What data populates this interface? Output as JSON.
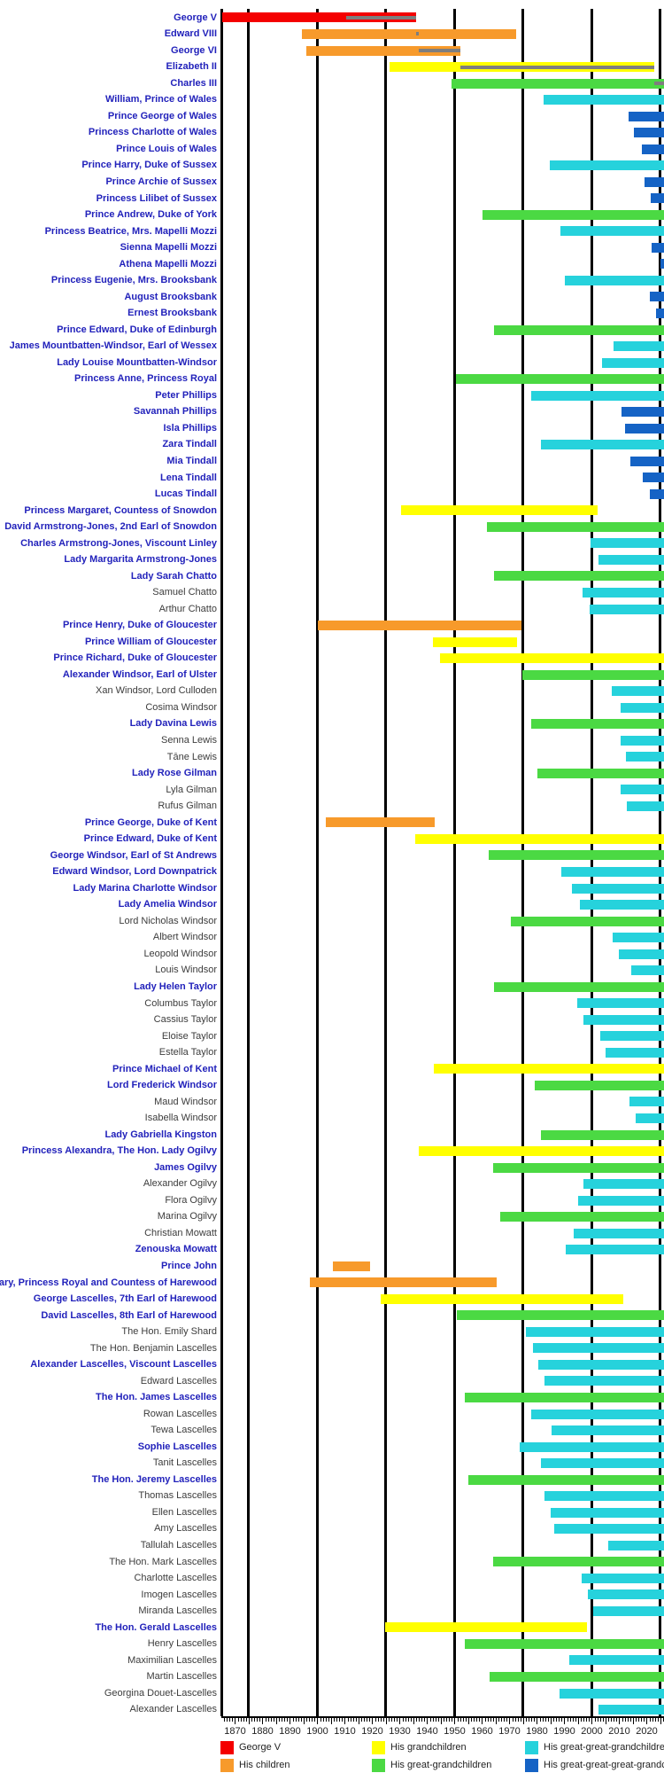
{
  "colors": {
    "generation_palette": [
      "#f40000",
      "#f79a2b",
      "#ffff00",
      "#4bd943",
      "#26d2dc",
      "#1563c5"
    ],
    "reign_stripe": "#7e7e7e",
    "link_label": "#2222bb",
    "plain_label": "#3c3c3c",
    "axis": "#000000"
  },
  "legend": [
    {
      "label": "George V",
      "color": "#f40000"
    },
    {
      "label": "His children",
      "color": "#f79a2b"
    },
    {
      "label": "His grandchildren",
      "color": "#ffff00"
    },
    {
      "label": "His great-grandchildren",
      "color": "#4bd943"
    },
    {
      "label": "His great-great-grandchildren",
      "color": "#26d2dc"
    },
    {
      "label": "His great-great-great-grandchildren",
      "color": "#1563c5"
    }
  ],
  "chart_data": {
    "type": "bar",
    "variant": "timeline-lifespans",
    "title": "",
    "xlabel": "",
    "ylabel": "",
    "axis": {
      "x_min": 1865,
      "x_max": 2026.3,
      "present_end": 2026.3,
      "gridline_years": [
        1875,
        1900,
        1925,
        1950,
        1975,
        2000,
        2025
      ],
      "tick_label_years": [
        1870,
        1880,
        1890,
        1900,
        1910,
        1920,
        1930,
        1940,
        1950,
        1960,
        1970,
        1980,
        1990,
        2000,
        2010,
        2020
      ],
      "minor_tick_step": 1,
      "major_tick_step": 5,
      "grid": true,
      "legend_position": "bottom"
    },
    "rows": [
      {
        "name": "George V",
        "generation": 0,
        "born": 1865.4,
        "died": 1936.1,
        "reign": [
          1910.4,
          1936.1
        ],
        "link": true
      },
      {
        "name": "Edward VIII",
        "generation": 1,
        "born": 1894.45,
        "died": 1972.4,
        "reign": [
          1936.05,
          1936.95
        ],
        "link": true
      },
      {
        "name": "George VI",
        "generation": 1,
        "born": 1895.95,
        "died": 1952.1,
        "reign": [
          1936.95,
          1952.1
        ],
        "link": true
      },
      {
        "name": "Elizabeth II",
        "generation": 2,
        "born": 1926.3,
        "died": 2022.7,
        "reign": [
          1952.1,
          2022.7
        ],
        "link": true
      },
      {
        "name": "Charles III",
        "generation": 3,
        "born": 1948.9,
        "died": null,
        "reign": [
          2022.7,
          null
        ],
        "link": true
      },
      {
        "name": "William, Prince of Wales",
        "generation": 4,
        "born": 1982.5,
        "died": null,
        "reign": null,
        "link": true
      },
      {
        "name": "Prince George of Wales",
        "generation": 5,
        "born": 2013.55,
        "died": null,
        "reign": null,
        "link": true
      },
      {
        "name": "Princess Charlotte of Wales",
        "generation": 5,
        "born": 2015.35,
        "died": null,
        "reign": null,
        "link": true
      },
      {
        "name": "Prince Louis of Wales",
        "generation": 5,
        "born": 2018.3,
        "died": null,
        "reign": null,
        "link": true
      },
      {
        "name": "Prince Harry, Duke of Sussex",
        "generation": 4,
        "born": 1984.7,
        "died": null,
        "reign": null,
        "link": true
      },
      {
        "name": "Prince Archie of Sussex",
        "generation": 5,
        "born": 2019.35,
        "died": null,
        "reign": null,
        "link": true
      },
      {
        "name": "Princess Lilibet of Sussex",
        "generation": 5,
        "born": 2021.4,
        "died": null,
        "reign": null,
        "link": true
      },
      {
        "name": "Prince Andrew, Duke of York",
        "generation": 3,
        "born": 1960.15,
        "died": null,
        "reign": null,
        "link": true
      },
      {
        "name": "Princess Beatrice, Mrs. Mapelli Mozzi",
        "generation": 4,
        "born": 1988.6,
        "died": null,
        "reign": null,
        "link": true
      },
      {
        "name": "Sienna Mapelli Mozzi",
        "generation": 5,
        "born": 2021.7,
        "died": null,
        "reign": null,
        "link": true
      },
      {
        "name": "Athena Mapelli Mozzi",
        "generation": 5,
        "born": 2025.1,
        "died": null,
        "reign": null,
        "link": true
      },
      {
        "name": "Princess Eugenie, Mrs. Brooksbank",
        "generation": 4,
        "born": 1990.2,
        "died": null,
        "reign": null,
        "link": true
      },
      {
        "name": "August Brooksbank",
        "generation": 5,
        "born": 2021.1,
        "died": null,
        "reign": null,
        "link": true
      },
      {
        "name": "Ernest Brooksbank",
        "generation": 5,
        "born": 2023.4,
        "died": null,
        "reign": null,
        "link": true
      },
      {
        "name": "Prince Edward, Duke of Edinburgh",
        "generation": 3,
        "born": 1964.2,
        "died": null,
        "reign": null,
        "link": true
      },
      {
        "name": "James Mountbatten-Windsor, Earl of Wessex",
        "generation": 4,
        "born": 2007.95,
        "died": null,
        "reign": null,
        "link": true
      },
      {
        "name": "Lady Louise Mountbatten-Windsor",
        "generation": 4,
        "born": 2003.85,
        "died": null,
        "reign": null,
        "link": true
      },
      {
        "name": "Princess Anne, Princess Royal",
        "generation": 3,
        "born": 1950.6,
        "died": null,
        "reign": null,
        "link": true
      },
      {
        "name": "Peter Phillips",
        "generation": 4,
        "born": 1977.85,
        "died": null,
        "reign": null,
        "link": true
      },
      {
        "name": "Savannah Phillips",
        "generation": 5,
        "born": 2010.95,
        "died": null,
        "reign": null,
        "link": true
      },
      {
        "name": "Isla Phillips",
        "generation": 5,
        "born": 2012.25,
        "died": null,
        "reign": null,
        "link": true
      },
      {
        "name": "Zara Tindall",
        "generation": 4,
        "born": 1981.4,
        "died": null,
        "reign": null,
        "link": true
      },
      {
        "name": "Mia Tindall",
        "generation": 5,
        "born": 2014.05,
        "died": null,
        "reign": null,
        "link": true
      },
      {
        "name": "Lena Tindall",
        "generation": 5,
        "born": 2018.45,
        "died": null,
        "reign": null,
        "link": true
      },
      {
        "name": "Lucas Tindall",
        "generation": 5,
        "born": 2021.2,
        "died": null,
        "reign": null,
        "link": true
      },
      {
        "name": "Princess Margaret, Countess of Snowdon",
        "generation": 2,
        "born": 1930.6,
        "died": 2002.1,
        "reign": null,
        "link": true
      },
      {
        "name": "David Armstrong-Jones, 2nd Earl of Snowdon",
        "generation": 3,
        "born": 1961.85,
        "died": null,
        "reign": null,
        "link": true
      },
      {
        "name": "Charles Armstrong-Jones, Viscount Linley",
        "generation": 4,
        "born": 1999.5,
        "died": null,
        "reign": null,
        "link": true
      },
      {
        "name": "Lady Margarita Armstrong-Jones",
        "generation": 4,
        "born": 2002.35,
        "died": null,
        "reign": null,
        "link": true
      },
      {
        "name": "Lady Sarah Chatto",
        "generation": 3,
        "born": 1964.35,
        "died": null,
        "reign": null,
        "link": true
      },
      {
        "name": "Samuel Chatto",
        "generation": 4,
        "born": 1996.5,
        "died": null,
        "reign": null,
        "link": false
      },
      {
        "name": "Arthur Chatto",
        "generation": 4,
        "born": 1999.1,
        "died": null,
        "reign": null,
        "link": false
      },
      {
        "name": "Prince Henry, Duke of Gloucester",
        "generation": 1,
        "born": 1900.25,
        "died": 1974.45,
        "reign": null,
        "link": true
      },
      {
        "name": "Prince William of Gloucester",
        "generation": 2,
        "born": 1941.95,
        "died": 1972.65,
        "reign": null,
        "link": true
      },
      {
        "name": "Prince Richard, Duke of Gloucester",
        "generation": 2,
        "born": 1944.65,
        "died": null,
        "reign": null,
        "link": true
      },
      {
        "name": "Alexander Windsor, Earl of Ulster",
        "generation": 3,
        "born": 1974.8,
        "died": null,
        "reign": null,
        "link": true
      },
      {
        "name": "Xan Windsor, Lord Culloden",
        "generation": 4,
        "born": 2007.2,
        "died": null,
        "reign": null,
        "link": false
      },
      {
        "name": "Cosima Windsor",
        "generation": 4,
        "born": 2010.35,
        "died": null,
        "reign": null,
        "link": false
      },
      {
        "name": "Lady Davina Lewis",
        "generation": 3,
        "born": 1977.85,
        "died": null,
        "reign": null,
        "link": true
      },
      {
        "name": "Senna Lewis",
        "generation": 4,
        "born": 2010.5,
        "died": null,
        "reign": null,
        "link": false
      },
      {
        "name": "Tāne Lewis",
        "generation": 4,
        "born": 2012.4,
        "died": null,
        "reign": null,
        "link": false
      },
      {
        "name": "Lady Rose Gilman",
        "generation": 3,
        "born": 1980.2,
        "died": null,
        "reign": null,
        "link": true
      },
      {
        "name": "Lyla Gilman",
        "generation": 4,
        "born": 2010.4,
        "died": null,
        "reign": null,
        "link": false
      },
      {
        "name": "Rufus Gilman",
        "generation": 4,
        "born": 2012.8,
        "died": null,
        "reign": null,
        "link": false
      },
      {
        "name": "Prince George, Duke of Kent",
        "generation": 1,
        "born": 1902.95,
        "died": 1942.65,
        "reign": null,
        "link": true
      },
      {
        "name": "Prince Edward, Duke of Kent",
        "generation": 2,
        "born": 1935.8,
        "died": null,
        "reign": null,
        "link": true
      },
      {
        "name": "George Windsor, Earl of St Andrews",
        "generation": 3,
        "born": 1962.45,
        "died": null,
        "reign": null,
        "link": true
      },
      {
        "name": "Edward Windsor, Lord Downpatrick",
        "generation": 4,
        "born": 1988.9,
        "died": null,
        "reign": null,
        "link": true
      },
      {
        "name": "Lady Marina Charlotte Windsor",
        "generation": 4,
        "born": 1992.75,
        "died": null,
        "reign": null,
        "link": true
      },
      {
        "name": "Lady Amelia Windsor",
        "generation": 4,
        "born": 1995.65,
        "died": null,
        "reign": null,
        "link": true
      },
      {
        "name": "Lord Nicholas Windsor",
        "generation": 3,
        "born": 1970.55,
        "died": null,
        "reign": null,
        "link": false
      },
      {
        "name": "Albert Windsor",
        "generation": 4,
        "born": 2007.7,
        "died": null,
        "reign": null,
        "link": false
      },
      {
        "name": "Leopold Windsor",
        "generation": 4,
        "born": 2009.7,
        "died": null,
        "reign": null,
        "link": false
      },
      {
        "name": "Louis Windsor",
        "generation": 4,
        "born": 2014.4,
        "died": null,
        "reign": null,
        "link": false
      },
      {
        "name": "Lady Helen Taylor",
        "generation": 3,
        "born": 1964.3,
        "died": null,
        "reign": null,
        "link": true
      },
      {
        "name": "Columbus Taylor",
        "generation": 4,
        "born": 1994.6,
        "died": null,
        "reign": null,
        "link": false
      },
      {
        "name": "Cassius Taylor",
        "generation": 4,
        "born": 1996.95,
        "died": null,
        "reign": null,
        "link": false
      },
      {
        "name": "Eloise Taylor",
        "generation": 4,
        "born": 2003.2,
        "died": null,
        "reign": null,
        "link": false
      },
      {
        "name": "Estella Taylor",
        "generation": 4,
        "born": 2004.95,
        "died": null,
        "reign": null,
        "link": false
      },
      {
        "name": "Prince Michael of Kent",
        "generation": 2,
        "born": 1942.5,
        "died": null,
        "reign": null,
        "link": true
      },
      {
        "name": "Lord Frederick Windsor",
        "generation": 3,
        "born": 1979.3,
        "died": null,
        "reign": null,
        "link": true
      },
      {
        "name": "Maud Windsor",
        "generation": 4,
        "born": 2013.6,
        "died": null,
        "reign": null,
        "link": false
      },
      {
        "name": "Isabella Windsor",
        "generation": 4,
        "born": 2016.05,
        "died": null,
        "reign": null,
        "link": false
      },
      {
        "name": "Lady Gabriella Kingston",
        "generation": 3,
        "born": 1981.3,
        "died": null,
        "reign": null,
        "link": true
      },
      {
        "name": "Princess Alexandra, The Hon. Lady Ogilvy",
        "generation": 2,
        "born": 1936.95,
        "died": null,
        "reign": null,
        "link": true
      },
      {
        "name": "James Ogilvy",
        "generation": 3,
        "born": 1964.15,
        "died": null,
        "reign": null,
        "link": true
      },
      {
        "name": "Alexander Ogilvy",
        "generation": 4,
        "born": 1996.9,
        "died": null,
        "reign": null,
        "link": false
      },
      {
        "name": "Flora Ogilvy",
        "generation": 4,
        "born": 1994.95,
        "died": null,
        "reign": null,
        "link": false
      },
      {
        "name": "Marina Ogilvy",
        "generation": 3,
        "born": 1966.6,
        "died": null,
        "reign": null,
        "link": false
      },
      {
        "name": "Christian Mowatt",
        "generation": 4,
        "born": 1993.45,
        "died": null,
        "reign": null,
        "link": false
      },
      {
        "name": "Zenouska Mowatt",
        "generation": 4,
        "born": 1990.4,
        "died": null,
        "reign": null,
        "link": true
      },
      {
        "name": "Prince John",
        "generation": 1,
        "born": 1905.5,
        "died": 1919.05,
        "reign": null,
        "link": true
      },
      {
        "name": "Princess Mary, Princess Royal and Countess of Harewood",
        "generation": 1,
        "born": 1897.3,
        "died": 1965.25,
        "reign": null,
        "link": true
      },
      {
        "name": "George Lascelles, 7th Earl of Harewood",
        "generation": 2,
        "born": 1923.1,
        "died": 2011.5,
        "reign": null,
        "link": true
      },
      {
        "name": "David Lascelles, 8th Earl of Harewood",
        "generation": 3,
        "born": 1950.8,
        "died": null,
        "reign": null,
        "link": true
      },
      {
        "name": "The Hon. Emily Shard",
        "generation": 4,
        "born": 1975.85,
        "died": null,
        "reign": null,
        "link": false
      },
      {
        "name": "The Hon. Benjamin Lascelles",
        "generation": 4,
        "born": 1978.7,
        "died": null,
        "reign": null,
        "link": false
      },
      {
        "name": "Alexander Lascelles, Viscount Lascelles",
        "generation": 4,
        "born": 1980.35,
        "died": null,
        "reign": null,
        "link": true
      },
      {
        "name": "Edward Lascelles",
        "generation": 4,
        "born": 1982.85,
        "died": null,
        "reign": null,
        "link": false
      },
      {
        "name": "The Hon. James Lascelles",
        "generation": 3,
        "born": 1953.8,
        "died": null,
        "reign": null,
        "link": true
      },
      {
        "name": "Rowan Lascelles",
        "generation": 4,
        "born": 1977.85,
        "died": null,
        "reign": null,
        "link": false
      },
      {
        "name": "Tewa Lascelles",
        "generation": 4,
        "born": 1985.45,
        "died": null,
        "reign": null,
        "link": false
      },
      {
        "name": "Sophie Lascelles",
        "generation": 4,
        "born": 1973.8,
        "died": null,
        "reign": null,
        "link": true
      },
      {
        "name": "Tanit Lascelles",
        "generation": 4,
        "born": 1981.55,
        "died": null,
        "reign": null,
        "link": false
      },
      {
        "name": "The Hon. Jeremy Lascelles",
        "generation": 3,
        "born": 1955.1,
        "died": null,
        "reign": null,
        "link": true
      },
      {
        "name": "Thomas Lascelles",
        "generation": 4,
        "born": 1982.7,
        "died": null,
        "reign": null,
        "link": false
      },
      {
        "name": "Ellen Lascelles",
        "generation": 4,
        "born": 1984.95,
        "died": null,
        "reign": null,
        "link": false
      },
      {
        "name": "Amy Lascelles",
        "generation": 4,
        "born": 1986.45,
        "died": null,
        "reign": null,
        "link": false
      },
      {
        "name": "Tallulah Lascelles",
        "generation": 4,
        "born": 2005.95,
        "died": null,
        "reign": null,
        "link": false
      },
      {
        "name": "The Hon. Mark Lascelles",
        "generation": 3,
        "born": 1964.15,
        "died": null,
        "reign": null,
        "link": false
      },
      {
        "name": "Charlotte Lascelles",
        "generation": 4,
        "born": 1996.2,
        "died": null,
        "reign": null,
        "link": false
      },
      {
        "name": "Imogen Lascelles",
        "generation": 4,
        "born": 1998.5,
        "died": null,
        "reign": null,
        "link": false
      },
      {
        "name": "Miranda Lascelles",
        "generation": 4,
        "born": 2000.5,
        "died": null,
        "reign": null,
        "link": false
      },
      {
        "name": "The Hon. Gerald Lascelles",
        "generation": 2,
        "born": 1924.6,
        "died": 1998.15,
        "reign": null,
        "link": true
      },
      {
        "name": "Henry Lascelles",
        "generation": 3,
        "born": 1953.8,
        "died": null,
        "reign": null,
        "link": false
      },
      {
        "name": "Maximilian Lascelles",
        "generation": 4,
        "born": 1991.9,
        "died": null,
        "reign": null,
        "link": false
      },
      {
        "name": "Martin Lascelles",
        "generation": 3,
        "born": 1962.6,
        "died": null,
        "reign": null,
        "link": false
      },
      {
        "name": "Georgina Douet-Lascelles",
        "generation": 4,
        "born": 1988.1,
        "died": null,
        "reign": null,
        "link": false
      },
      {
        "name": "Alexander Lascelles",
        "generation": 4,
        "born": 2002.3,
        "died": null,
        "reign": null,
        "link": false
      }
    ]
  }
}
